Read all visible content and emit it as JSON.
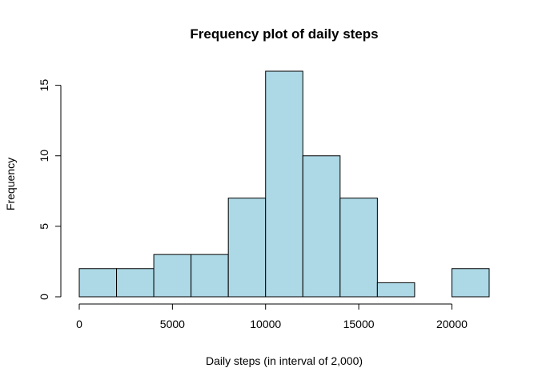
{
  "chart_data": {
    "type": "bar",
    "title": "Frequency plot of daily steps",
    "xlabel": "Daily steps (in interval of 2,000)",
    "ylabel": "Frequency",
    "bins": [
      {
        "start": 0,
        "end": 2000,
        "count": 2
      },
      {
        "start": 2000,
        "end": 4000,
        "count": 2
      },
      {
        "start": 4000,
        "end": 6000,
        "count": 3
      },
      {
        "start": 6000,
        "end": 8000,
        "count": 3
      },
      {
        "start": 8000,
        "end": 10000,
        "count": 7
      },
      {
        "start": 10000,
        "end": 12000,
        "count": 16
      },
      {
        "start": 12000,
        "end": 14000,
        "count": 10
      },
      {
        "start": 14000,
        "end": 16000,
        "count": 7
      },
      {
        "start": 16000,
        "end": 18000,
        "count": 1
      },
      {
        "start": 18000,
        "end": 20000,
        "count": 0
      },
      {
        "start": 20000,
        "end": 22000,
        "count": 2
      }
    ],
    "xticks": [
      "0",
      "5000",
      "10000",
      "15000",
      "20000"
    ],
    "yticks": [
      "0",
      "5",
      "10",
      "15"
    ],
    "xlim": [
      0,
      22000
    ],
    "ylim": [
      0,
      16
    ],
    "bar_color": "#add8e6",
    "grid": false,
    "legend": "none"
  }
}
